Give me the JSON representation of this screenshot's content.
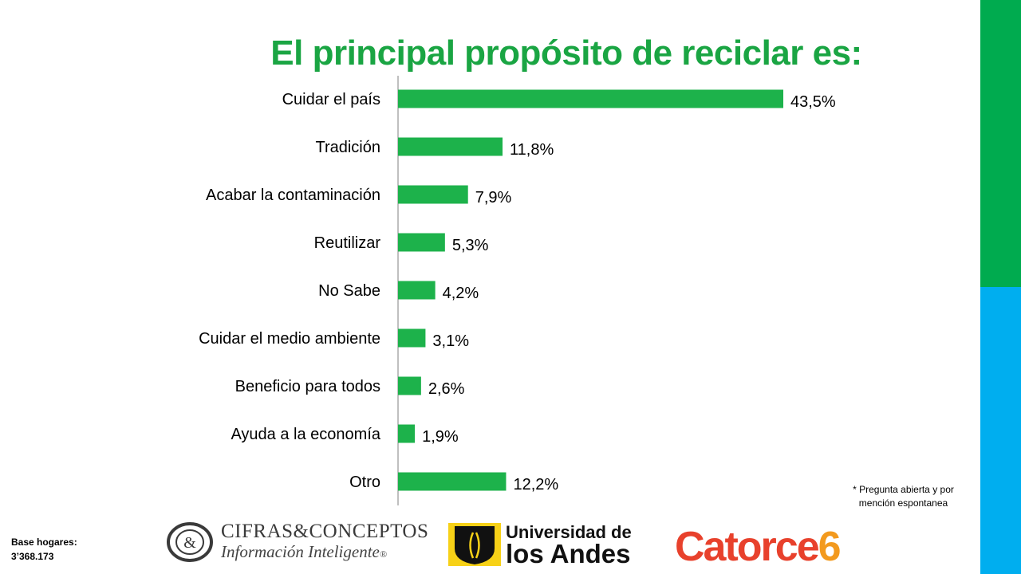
{
  "colors": {
    "bar": "#1db24b",
    "title": "#1aa543",
    "stripe_top": "#00ab4f",
    "stripe_bottom": "#00aeef",
    "axis": "#808080",
    "catorce_red": "#e8412c",
    "catorce_orange": "#f39a1e"
  },
  "slide": {
    "footnote_line1": "* Pregunta abierta y por",
    "footnote_line2": "mención espontanea",
    "base_label": "Base hogares:",
    "base_value": "3’368.173"
  },
  "logos": {
    "cifras_name": "CIFRAS&CONCEPTOS",
    "cifras_tagline": "Información Inteligente",
    "cifras_registered": "®",
    "andes_line1": "Universidad de",
    "andes_line2": "los Andes",
    "catorce_word": "Catorce",
    "catorce_digit": "6"
  },
  "chart_data": {
    "type": "bar",
    "orientation": "horizontal",
    "title": "El principal propósito de reciclar es:",
    "xlabel": "",
    "ylabel": "",
    "unit": "%",
    "decimal_separator": ",",
    "xlim": [
      0,
      43.5
    ],
    "grid": false,
    "legend": "none",
    "categories": [
      "Cuidar el país",
      "Tradición",
      "Acabar la contaminación",
      "Reutilizar",
      "No Sabe",
      "Cuidar el medio ambiente",
      "Beneficio para todos",
      "Ayuda a la economía",
      "Otro"
    ],
    "values": [
      43.5,
      11.8,
      7.9,
      5.3,
      4.2,
      3.1,
      2.6,
      1.9,
      12.2
    ],
    "data_labels": [
      "43,5%",
      "11,8%",
      "7,9%",
      "5,3%",
      "4,2%",
      "3,1%",
      "2,6%",
      "1,9%",
      "12,2%"
    ]
  }
}
